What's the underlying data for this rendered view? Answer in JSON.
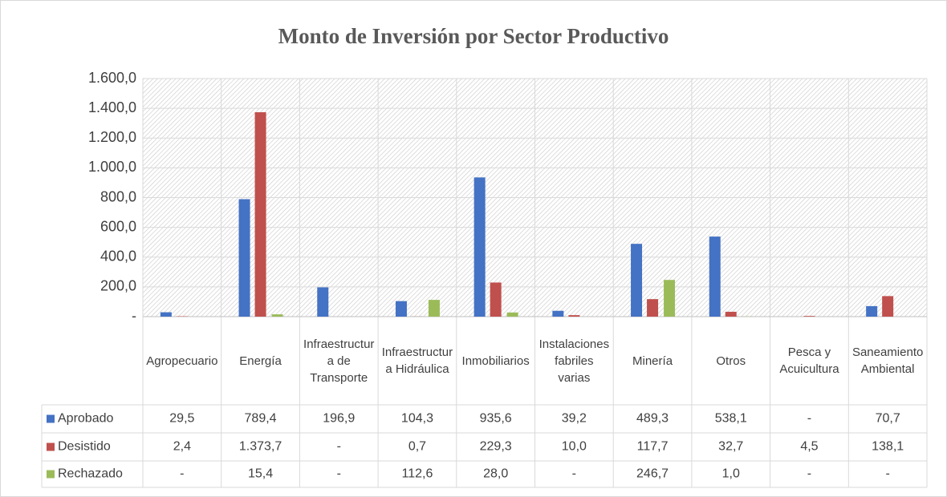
{
  "chart_data": {
    "type": "bar",
    "title": "Monto de Inversión por Sector Productivo",
    "categories": [
      "Agropecuario",
      "Energía",
      "Infraestructura de Transporte",
      "Infraestructura Hidráulica",
      "Inmobiliarios",
      "Instalaciones fabriles varias",
      "Minería",
      "Otros",
      "Pesca y Acuicultura",
      "Saneamiento Ambiental"
    ],
    "series": [
      {
        "name": "Aprobado",
        "color": "#4472c4",
        "values": [
          29.5,
          789.4,
          196.9,
          104.3,
          935.6,
          39.2,
          489.3,
          538.1,
          0,
          70.7
        ],
        "value_labels": [
          "29,5",
          "789,4",
          "196,9",
          "104,3",
          "935,6",
          "39,2",
          "489,3",
          "538,1",
          "-",
          "70,7"
        ]
      },
      {
        "name": "Desistido",
        "color": "#c0504d",
        "values": [
          2.4,
          1373.7,
          0,
          0.7,
          229.3,
          10.0,
          117.7,
          32.7,
          4.5,
          138.1
        ],
        "value_labels": [
          "2,4",
          "1.373,7",
          "-",
          "0,7",
          "229,3",
          "10,0",
          "117,7",
          "32,7",
          "4,5",
          "138,1"
        ]
      },
      {
        "name": "Rechazado",
        "color": "#9bbb59",
        "values": [
          0,
          15.4,
          0,
          112.6,
          28.0,
          0,
          246.7,
          1.0,
          0,
          0
        ],
        "value_labels": [
          "-",
          "15,4",
          "-",
          "112,6",
          "28,0",
          "-",
          "246,7",
          "1,0",
          "-",
          "-"
        ]
      }
    ],
    "ylim": [
      0,
      1600
    ],
    "yticks": [
      {
        "value": 0,
        "label": "-"
      },
      {
        "value": 200,
        "label": "200,0"
      },
      {
        "value": 400,
        "label": "400,0"
      },
      {
        "value": 600,
        "label": "600,0"
      },
      {
        "value": 800,
        "label": "800,0"
      },
      {
        "value": 1000,
        "label": "1.000,0"
      },
      {
        "value": 1200,
        "label": "1.200,0"
      },
      {
        "value": 1400,
        "label": "1.400,0"
      },
      {
        "value": 1600,
        "label": "1.600,0"
      }
    ],
    "grid": true
  }
}
